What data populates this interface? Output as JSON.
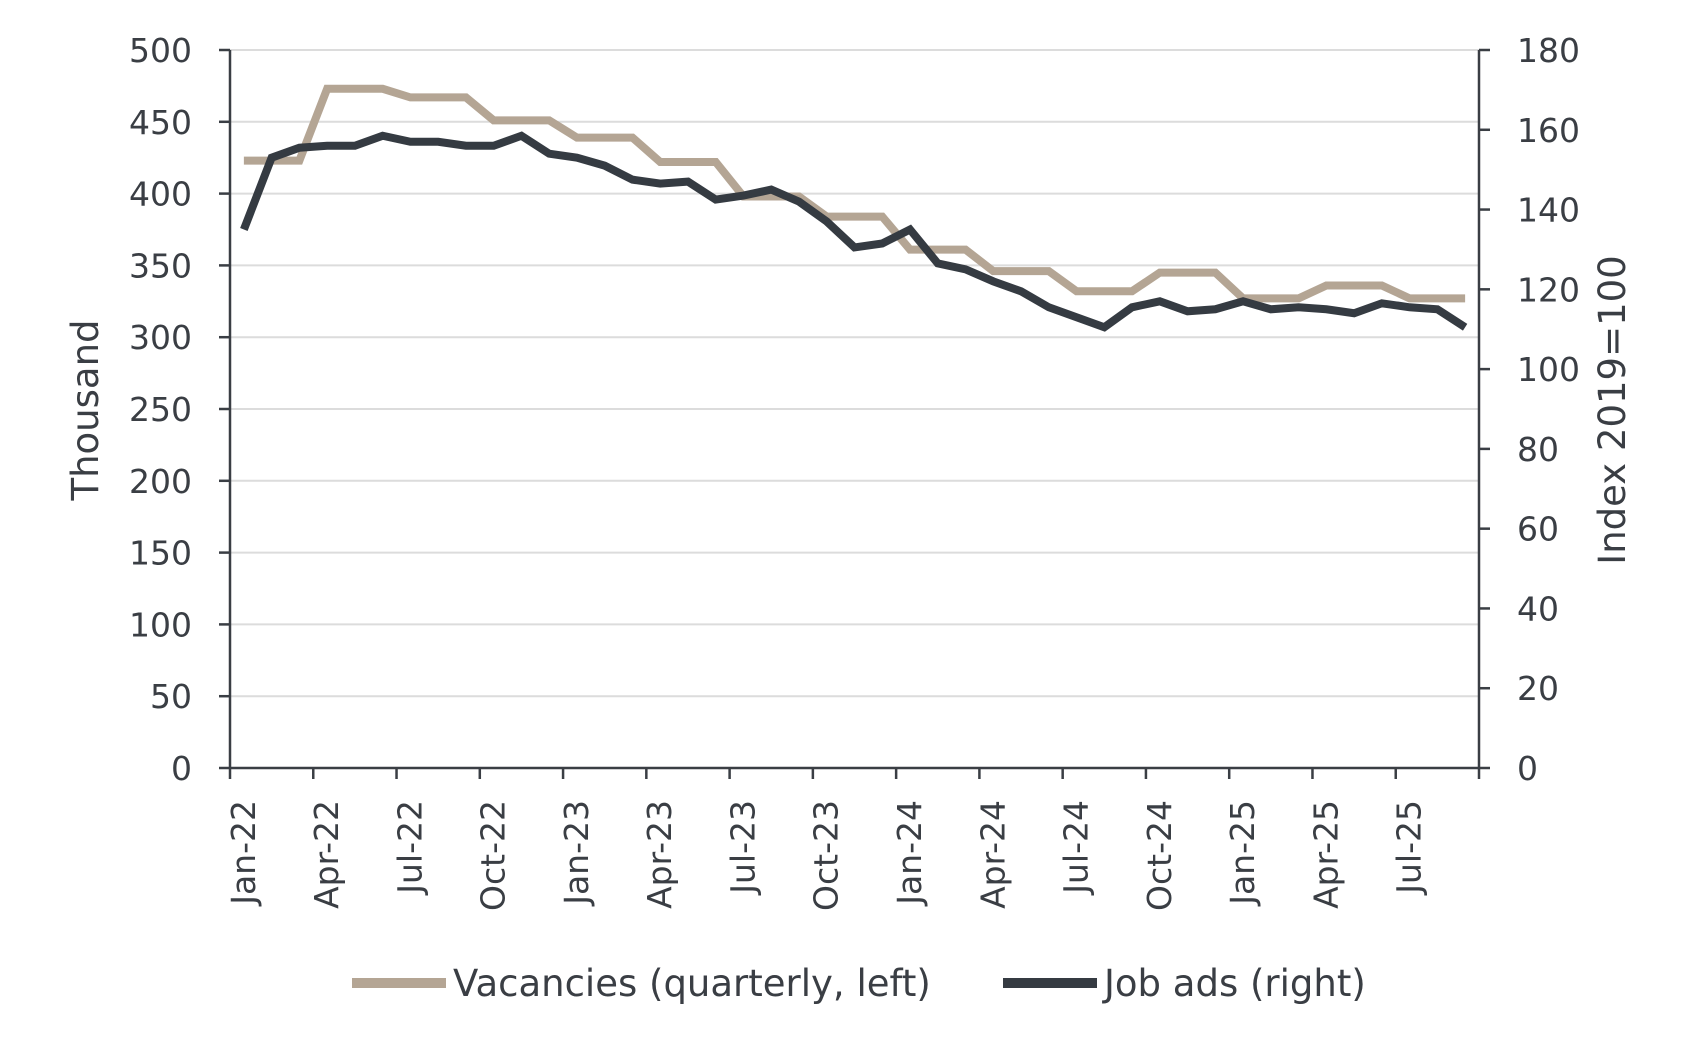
{
  "chart_data": {
    "type": "line",
    "title": "",
    "x": [
      "2022-01",
      "2022-02",
      "2022-03",
      "2022-04",
      "2022-05",
      "2022-06",
      "2022-07",
      "2022-08",
      "2022-09",
      "2022-10",
      "2022-11",
      "2022-12",
      "2023-01",
      "2023-02",
      "2023-03",
      "2023-04",
      "2023-05",
      "2023-06",
      "2023-07",
      "2023-08",
      "2023-09",
      "2023-10",
      "2023-11",
      "2023-12",
      "2024-01",
      "2024-02",
      "2024-03",
      "2024-04",
      "2024-05",
      "2024-06",
      "2024-07",
      "2024-08",
      "2024-09",
      "2024-10",
      "2024-11",
      "2024-12",
      "2025-01",
      "2025-02",
      "2025-03",
      "2025-04",
      "2025-05",
      "2025-06",
      "2025-07",
      "2025-08",
      "2025-09"
    ],
    "xticks": [
      "Jan-22",
      "Apr-22",
      "Jul-22",
      "Oct-22",
      "Jan-23",
      "Apr-23",
      "Jul-23",
      "Oct-23",
      "Jan-24",
      "Apr-24",
      "Jul-24",
      "Oct-24",
      "Jan-25",
      "Apr-25",
      "Jul-25"
    ],
    "y_left": {
      "label": "Thousand",
      "range": [
        0,
        500
      ],
      "ticks": [
        "0",
        "50",
        "100",
        "150",
        "200",
        "250",
        "300",
        "350",
        "400",
        "450",
        "500"
      ]
    },
    "y_right": {
      "label": "Index 2019=100",
      "range": [
        0,
        180
      ],
      "ticks": [
        "0",
        "20",
        "40",
        "60",
        "80",
        "100",
        "120",
        "140",
        "160",
        "180"
      ]
    },
    "grid": true,
    "legend_position": "bottom",
    "series": [
      {
        "name": "Vacancies (quarterly, left)",
        "axis": "left",
        "color": "#b4a594",
        "values": [
          423,
          423,
          423,
          473,
          473,
          473,
          467,
          467,
          467,
          451,
          451,
          451,
          439,
          439,
          439,
          422,
          422,
          422,
          398,
          398,
          398,
          384,
          384,
          384,
          361,
          361,
          361,
          346,
          346,
          346,
          332,
          332,
          332,
          345,
          345,
          345,
          327,
          327,
          327,
          336,
          336,
          336,
          327,
          327,
          327
        ]
      },
      {
        "name": "Job ads (right)",
        "axis": "right",
        "color": "#353b42",
        "values": [
          135,
          153,
          155.5,
          156,
          156,
          158.5,
          157,
          157,
          156,
          156,
          158.5,
          154,
          153,
          151,
          147.5,
          146.5,
          147,
          142.5,
          143.5,
          145,
          142,
          137,
          130.5,
          131.5,
          135,
          126.5,
          125,
          122,
          119.5,
          115.5,
          113,
          110.5,
          115.5,
          117,
          114.5,
          115,
          117,
          115,
          115.5,
          115,
          114,
          116.5,
          115.5,
          115,
          110.5
        ]
      }
    ]
  }
}
